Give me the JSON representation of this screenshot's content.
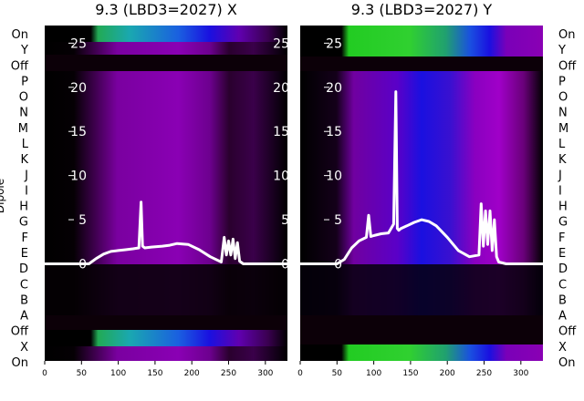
{
  "chart_data": [
    {
      "type": "heatmap",
      "title": "9.3 (LBD3=2027) X",
      "rows_top_to_bottom": [
        "On",
        "Y",
        "Off",
        "P",
        "O",
        "N",
        "M",
        "L",
        "K",
        "J",
        "I",
        "H",
        "G",
        "F",
        "E",
        "D",
        "C",
        "B",
        "A",
        "Off",
        "X",
        "On"
      ],
      "xticks": [
        "0",
        "50",
        "100",
        "150",
        "200",
        "250",
        "300"
      ],
      "xlim": [
        0,
        330
      ],
      "yticks": [
        "0",
        "5",
        "10",
        "15",
        "20",
        "25"
      ],
      "ylim": [
        -11,
        27
      ],
      "ylabel": "Dipole",
      "overlay_line": {
        "x": [
          0,
          60,
          70,
          80,
          90,
          100,
          110,
          120,
          128,
          131,
          133,
          136,
          145,
          160,
          170,
          180,
          195,
          210,
          225,
          240,
          244,
          247,
          250,
          253,
          256,
          259,
          262,
          265,
          270,
          290,
          330
        ],
        "y": [
          0,
          0,
          0.6,
          1.1,
          1.4,
          1.5,
          1.6,
          1.7,
          1.8,
          7,
          2,
          1.8,
          1.9,
          2.0,
          2.1,
          2.3,
          2.2,
          1.6,
          0.8,
          0.2,
          3,
          1.0,
          2.6,
          1.0,
          2.8,
          0.6,
          2.4,
          0.3,
          0,
          0,
          0
        ]
      }
    },
    {
      "type": "heatmap",
      "title": "9.3 (LBD3=2027) Y",
      "rows_top_to_bottom": [
        "On",
        "Y",
        "Off",
        "P",
        "O",
        "N",
        "M",
        "L",
        "K",
        "J",
        "I",
        "H",
        "G",
        "F",
        "E",
        "D",
        "C",
        "B",
        "A",
        "Off",
        "X",
        "On"
      ],
      "xticks": [
        "0",
        "50",
        "100",
        "150",
        "200",
        "250",
        "300"
      ],
      "xlim": [
        0,
        330
      ],
      "yticks": [
        "0",
        "5",
        "10",
        "15",
        "20",
        "25"
      ],
      "ylim": [
        -11,
        27
      ],
      "overlay_line": {
        "x": [
          0,
          50,
          60,
          70,
          80,
          90,
          93,
          96,
          100,
          110,
          120,
          127,
          130,
          132,
          134,
          137,
          145,
          155,
          165,
          175,
          185,
          200,
          215,
          230,
          243,
          246,
          249,
          252,
          255,
          258,
          261,
          264,
          267,
          270,
          280,
          330
        ],
        "y": [
          0,
          0,
          0.5,
          1.8,
          2.6,
          3.0,
          5.5,
          3.1,
          3.2,
          3.4,
          3.5,
          4.5,
          19.5,
          4.0,
          3.8,
          4.0,
          4.3,
          4.7,
          5.0,
          4.8,
          4.3,
          3.0,
          1.5,
          0.8,
          1.0,
          6.8,
          2.0,
          6.0,
          2.2,
          6.0,
          1.5,
          5.0,
          0.8,
          0.2,
          0,
          0
        ]
      }
    }
  ],
  "colors": {
    "purple": "#8b00b5",
    "dark": "#14000f",
    "blue": "#1a10e0",
    "green": "#22cc22",
    "teal": "#1aa8b0",
    "line": "#ffffff"
  }
}
